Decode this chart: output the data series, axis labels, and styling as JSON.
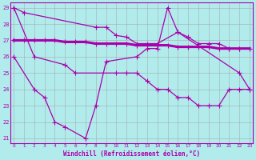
{
  "xlabel": "Windchill (Refroidissement éolien,°C)",
  "bg_color": "#b2ebeb",
  "line_color": "#aa00aa",
  "grid_color": "#999999",
  "line1_x": [
    0,
    1,
    8,
    9,
    10,
    11,
    12,
    13,
    14,
    16,
    17,
    18,
    19,
    20,
    21,
    22
  ],
  "line1_y": [
    29.0,
    28.7,
    27.8,
    27.8,
    27.3,
    27.2,
    26.8,
    26.8,
    26.8,
    27.5,
    27.2,
    26.8,
    26.8,
    26.8,
    26.5,
    26.5
  ],
  "line2_x": [
    0,
    1,
    2,
    3,
    4,
    5,
    6,
    7,
    8,
    9,
    10,
    11,
    12,
    13,
    14,
    15,
    16,
    17,
    18,
    19,
    20,
    21,
    22,
    23
  ],
  "line2_y": [
    27.0,
    27.0,
    27.0,
    27.0,
    27.0,
    26.9,
    26.9,
    26.9,
    26.8,
    26.8,
    26.8,
    26.8,
    26.7,
    26.7,
    26.7,
    26.7,
    26.6,
    26.6,
    26.6,
    26.6,
    26.5,
    26.5,
    26.5,
    26.5
  ],
  "line3_x": [
    0,
    2,
    3,
    4,
    5,
    7,
    8,
    9,
    12,
    13,
    14,
    15,
    16,
    22,
    23
  ],
  "line3_y": [
    26.0,
    24.0,
    23.5,
    22.0,
    21.7,
    21.0,
    23.0,
    25.7,
    26.0,
    26.5,
    26.5,
    29.0,
    27.5,
    25.0,
    24.0
  ],
  "line4_x": [
    0,
    2,
    5,
    6,
    10,
    11,
    12,
    13,
    14,
    15,
    16,
    17,
    18,
    19,
    20,
    21,
    22,
    23
  ],
  "line4_y": [
    29.0,
    26.0,
    25.5,
    25.0,
    25.0,
    25.0,
    25.0,
    24.5,
    24.0,
    24.0,
    23.5,
    23.5,
    23.0,
    23.0,
    23.0,
    24.0,
    24.0,
    24.0
  ],
  "ylim_min": 20.7,
  "ylim_max": 29.3,
  "xlim_min": -0.3,
  "xlim_max": 23.3,
  "yticks": [
    21,
    22,
    23,
    24,
    25,
    26,
    27,
    28,
    29
  ],
  "xticks": [
    0,
    1,
    2,
    3,
    4,
    5,
    6,
    7,
    8,
    9,
    10,
    11,
    12,
    13,
    14,
    15,
    16,
    17,
    18,
    19,
    20,
    21,
    22,
    23
  ]
}
